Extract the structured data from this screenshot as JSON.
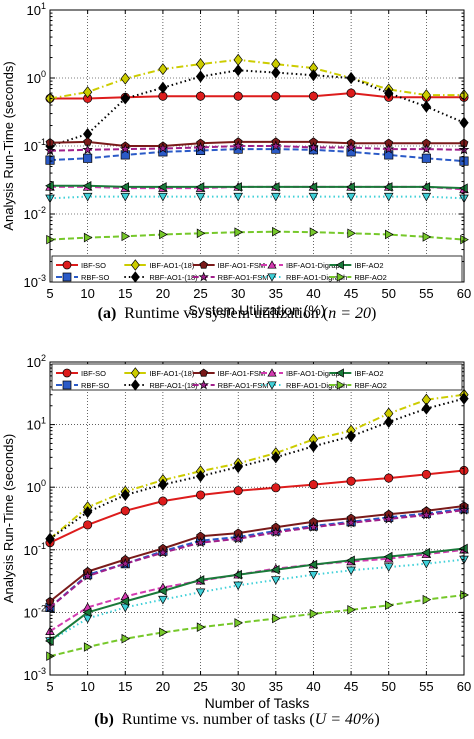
{
  "figure": {
    "captions": [
      {
        "label": "(a)",
        "prefix": "Runtime vs. system utilization (",
        "math": "n = 20",
        "suffix": ")"
      },
      {
        "label": "(b)",
        "prefix": "Runtime vs. number of tasks (",
        "math": "U = 40%",
        "suffix": ")"
      }
    ]
  },
  "chart_data": [
    {
      "type": "line",
      "title": "",
      "xlabel": "System Utilization (%)",
      "ylabel": "Analysis Run-Time (seconds)",
      "x": [
        5,
        10,
        15,
        20,
        25,
        30,
        35,
        40,
        45,
        50,
        55,
        60
      ],
      "xlim": [
        5,
        60
      ],
      "ylim": [
        0.001,
        10
      ],
      "yscale": "log",
      "ytick_exponents": [
        -3,
        -2,
        -1,
        0,
        1
      ],
      "grid": true,
      "legend_position": "bottom",
      "legend_columns": 6,
      "series": [
        {
          "name": "IBF-SO",
          "color": "#dd1c1c",
          "marker": "circle",
          "dash": "solid",
          "values": [
            0.5,
            0.5,
            0.52,
            0.54,
            0.54,
            0.54,
            0.54,
            0.54,
            0.6,
            0.52,
            0.52,
            0.52
          ]
        },
        {
          "name": "RBF-SO",
          "color": "#2a5ac7",
          "marker": "square",
          "dash": "dashed",
          "values": [
            0.062,
            0.066,
            0.074,
            0.082,
            0.086,
            0.09,
            0.09,
            0.088,
            0.082,
            0.074,
            0.066,
            0.06
          ]
        },
        {
          "name": "IBF-AO1-(18)",
          "color": "#cccc00",
          "marker": "diamond",
          "dash": "dashdot",
          "values": [
            0.5,
            0.62,
            0.98,
            1.35,
            1.6,
            1.85,
            1.6,
            1.4,
            1.0,
            0.68,
            0.56,
            0.56
          ]
        },
        {
          "name": "RBF-AO1-(18)",
          "color": "#000000",
          "marker": "diamond",
          "dash": "dotted",
          "values": [
            0.1,
            0.15,
            0.5,
            0.72,
            1.05,
            1.3,
            1.2,
            1.1,
            1.0,
            0.6,
            0.38,
            0.22
          ]
        },
        {
          "name": "IBF-AO1-FSM",
          "color": "#7a1a1a",
          "marker": "pentagon",
          "dash": "solid",
          "values": [
            0.112,
            0.115,
            0.1,
            0.1,
            0.11,
            0.115,
            0.115,
            0.115,
            0.11,
            0.11,
            0.11,
            0.11
          ]
        },
        {
          "name": "RBF-AO1-FSM",
          "color": "#a0208a",
          "marker": "star",
          "dash": "dashed",
          "values": [
            0.085,
            0.088,
            0.09,
            0.092,
            0.095,
            0.1,
            0.1,
            0.095,
            0.095,
            0.09,
            0.09,
            0.088
          ]
        },
        {
          "name": "IBF-AO1-Digraph",
          "color": "#d23ab0",
          "marker": "triangle-up",
          "dash": "dashed",
          "values": [
            0.025,
            0.025,
            0.024,
            0.024,
            0.024,
            0.025,
            0.025,
            0.025,
            0.025,
            0.025,
            0.025,
            0.023
          ]
        },
        {
          "name": "RBF-AO1-Digraph",
          "color": "#3fd0d8",
          "marker": "triangle-down",
          "dash": "dotted",
          "values": [
            0.017,
            0.018,
            0.018,
            0.018,
            0.018,
            0.018,
            0.018,
            0.018,
            0.018,
            0.018,
            0.018,
            0.017
          ]
        },
        {
          "name": "IBF-AO2",
          "color": "#1a7a3a",
          "marker": "triangle-left",
          "dash": "solid",
          "values": [
            0.026,
            0.026,
            0.025,
            0.025,
            0.025,
            0.025,
            0.025,
            0.025,
            0.025,
            0.025,
            0.025,
            0.024
          ]
        },
        {
          "name": "RBF-AO2",
          "color": "#76c82a",
          "marker": "triangle-right",
          "dash": "dashed",
          "values": [
            0.0042,
            0.0045,
            0.0047,
            0.005,
            0.0052,
            0.0054,
            0.0055,
            0.0054,
            0.0052,
            0.005,
            0.0046,
            0.0042
          ]
        }
      ]
    },
    {
      "type": "line",
      "title": "",
      "xlabel": "Number of Tasks",
      "ylabel": "Analysis Run-Time (seconds)",
      "x": [
        5,
        10,
        15,
        20,
        25,
        30,
        35,
        40,
        45,
        50,
        55,
        60
      ],
      "xlim": [
        5,
        60
      ],
      "ylim": [
        0.001,
        100
      ],
      "yscale": "log",
      "ytick_exponents": [
        -3,
        -2,
        -1,
        0,
        1,
        2
      ],
      "grid": true,
      "legend_position": "top",
      "legend_columns": 6,
      "series": [
        {
          "name": "IBF-SO",
          "color": "#dd1c1c",
          "marker": "circle",
          "dash": "solid",
          "values": [
            0.13,
            0.25,
            0.42,
            0.6,
            0.75,
            0.88,
            0.98,
            1.1,
            1.25,
            1.4,
            1.6,
            1.85
          ]
        },
        {
          "name": "RBF-SO",
          "color": "#2a5ac7",
          "marker": "square",
          "dash": "dashed",
          "values": [
            0.012,
            0.04,
            0.06,
            0.095,
            0.14,
            0.16,
            0.2,
            0.24,
            0.28,
            0.33,
            0.38,
            0.45
          ]
        },
        {
          "name": "IBF-AO1-(18)",
          "color": "#cccc00",
          "marker": "diamond",
          "dash": "dashdot",
          "values": [
            0.15,
            0.48,
            0.85,
            1.3,
            1.8,
            2.4,
            3.5,
            5.8,
            8.0,
            15,
            25,
            30
          ]
        },
        {
          "name": "RBF-AO1-(18)",
          "color": "#000000",
          "marker": "diamond",
          "dash": "dotted",
          "values": [
            0.15,
            0.4,
            0.75,
            1.1,
            1.5,
            2.1,
            3.0,
            4.5,
            6.5,
            11,
            18,
            26
          ]
        },
        {
          "name": "IBF-AO1-FSM",
          "color": "#7a1a1a",
          "marker": "pentagon",
          "dash": "solid",
          "values": [
            0.015,
            0.045,
            0.07,
            0.105,
            0.165,
            0.185,
            0.23,
            0.28,
            0.32,
            0.37,
            0.42,
            0.5
          ]
        },
        {
          "name": "RBF-AO1-FSM",
          "color": "#a0208a",
          "marker": "star",
          "dash": "dashed",
          "values": [
            0.012,
            0.038,
            0.06,
            0.09,
            0.13,
            0.15,
            0.19,
            0.23,
            0.27,
            0.31,
            0.36,
            0.43
          ]
        },
        {
          "name": "IBF-AO1-Digraph",
          "color": "#d23ab0",
          "marker": "triangle-up",
          "dash": "dashed",
          "values": [
            0.005,
            0.012,
            0.018,
            0.025,
            0.032,
            0.04,
            0.05,
            0.058,
            0.065,
            0.072,
            0.085,
            0.1
          ]
        },
        {
          "name": "RBF-AO1-Digraph",
          "color": "#3fd0d8",
          "marker": "triangle-down",
          "dash": "dotted",
          "values": [
            0.0035,
            0.008,
            0.012,
            0.016,
            0.021,
            0.027,
            0.033,
            0.04,
            0.047,
            0.053,
            0.06,
            0.07
          ]
        },
        {
          "name": "IBF-AO2",
          "color": "#1a7a3a",
          "marker": "triangle-left",
          "dash": "solid",
          "values": [
            0.0035,
            0.01,
            0.015,
            0.022,
            0.033,
            0.04,
            0.048,
            0.058,
            0.068,
            0.078,
            0.09,
            0.105
          ]
        },
        {
          "name": "RBF-AO2",
          "color": "#76c82a",
          "marker": "triangle-right",
          "dash": "dashed",
          "values": [
            0.002,
            0.0028,
            0.0038,
            0.0048,
            0.0058,
            0.0068,
            0.008,
            0.0095,
            0.011,
            0.013,
            0.016,
            0.019
          ]
        }
      ]
    }
  ]
}
